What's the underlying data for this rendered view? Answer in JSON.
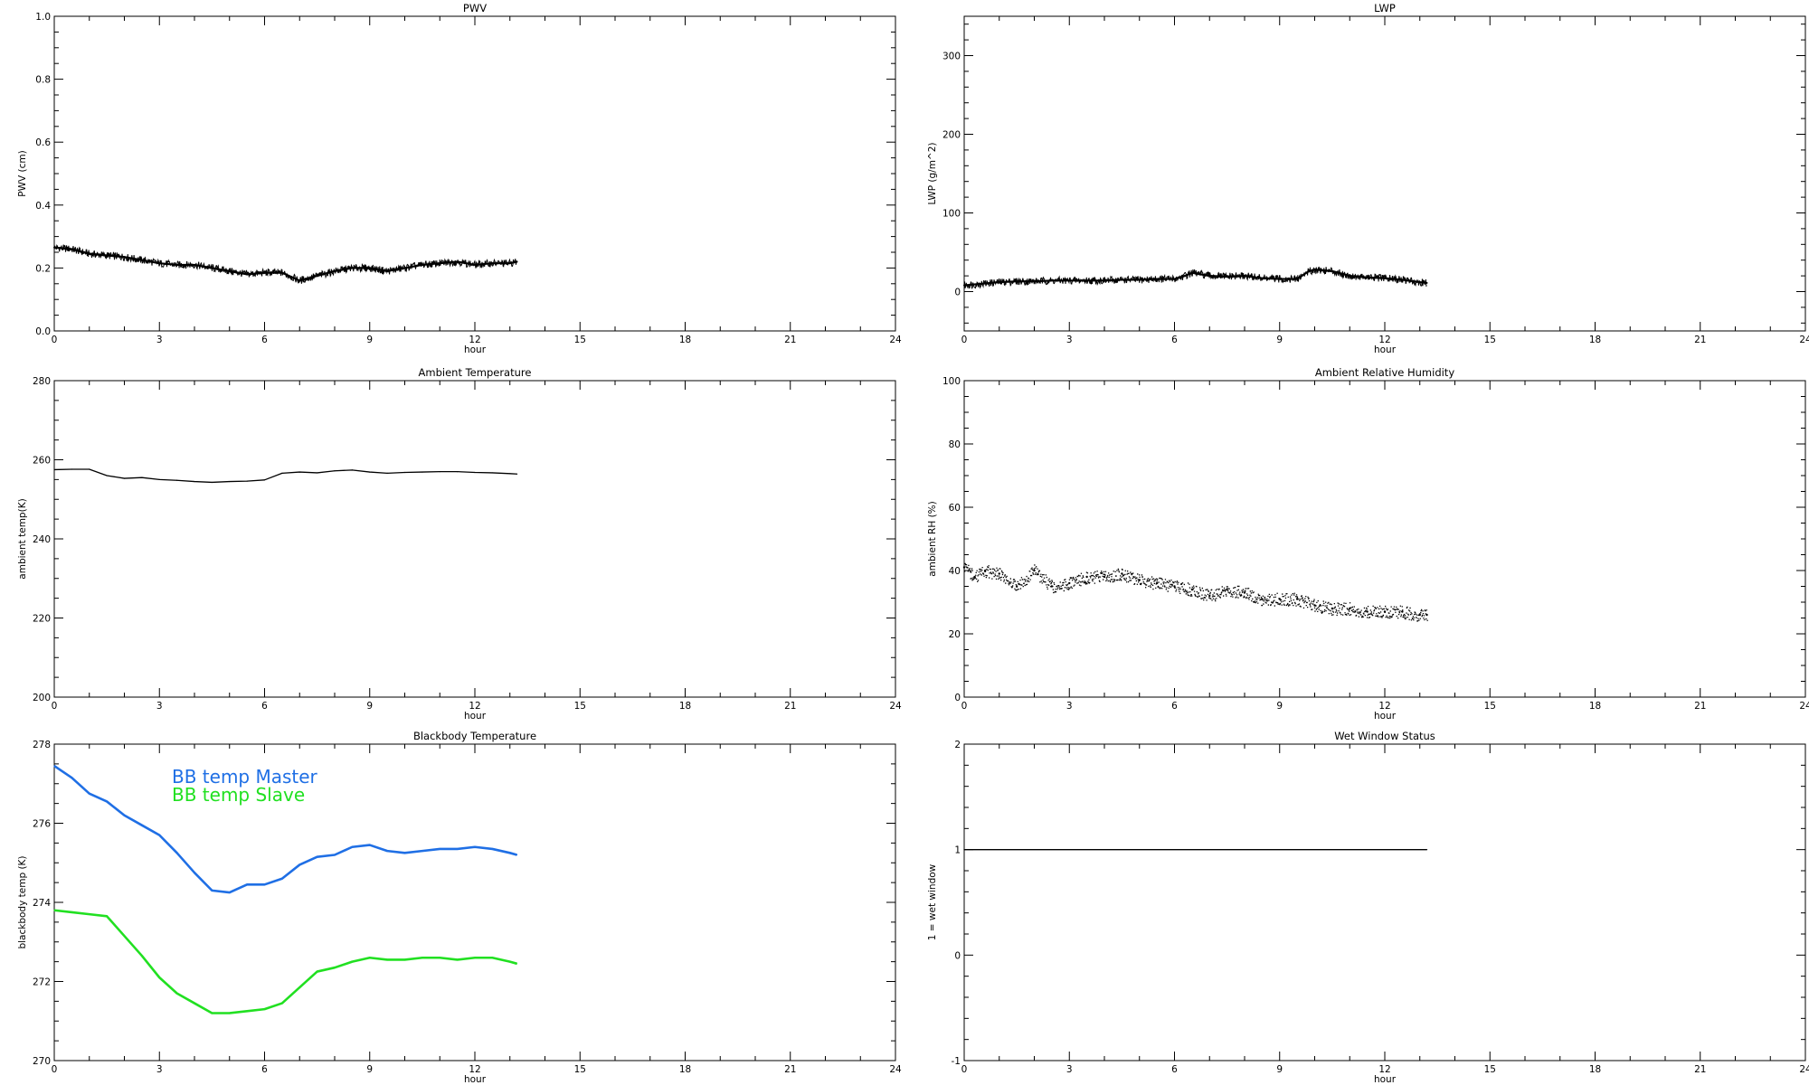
{
  "chart_data": [
    {
      "type": "line",
      "title": "PWV",
      "xlabel": "hour",
      "ylabel": "PWV (cm)",
      "xlim": [
        0,
        24
      ],
      "ylim": [
        0.0,
        1.0
      ],
      "xticks": [
        "0",
        "3",
        "6",
        "9",
        "12",
        "15",
        "18",
        "21",
        "24"
      ],
      "yticks": [
        "0.0",
        "0.2",
        "0.4",
        "0.6",
        "0.8",
        "1.0"
      ],
      "marker_style": "dense-noisy",
      "series": [
        {
          "color": "#000000",
          "x": [
            0,
            0.5,
            1,
            1.5,
            2,
            2.5,
            3,
            3.5,
            4,
            4.5,
            5,
            5.5,
            6,
            6.5,
            7,
            7.5,
            8,
            8.5,
            9,
            9.5,
            10,
            10.5,
            11,
            11.5,
            12,
            12.5,
            13,
            13.2
          ],
          "y": [
            0.265,
            0.26,
            0.245,
            0.24,
            0.235,
            0.225,
            0.215,
            0.21,
            0.21,
            0.2,
            0.19,
            0.18,
            0.185,
            0.185,
            0.16,
            0.175,
            0.19,
            0.2,
            0.2,
            0.19,
            0.2,
            0.21,
            0.215,
            0.22,
            0.21,
            0.215,
            0.215,
            0.22
          ]
        }
      ]
    },
    {
      "type": "line",
      "title": "LWP",
      "xlabel": "hour",
      "ylabel": "LWP (g/m^2)",
      "xlim": [
        0,
        24
      ],
      "ylim": [
        -50,
        350
      ],
      "xticks": [
        "0",
        "3",
        "6",
        "9",
        "12",
        "15",
        "18",
        "21",
        "24"
      ],
      "yticks": [
        "0",
        "100",
        "200",
        "300"
      ],
      "marker_style": "dense-noisy",
      "series": [
        {
          "color": "#000000",
          "x": [
            0,
            0.5,
            1,
            1.5,
            2,
            2.5,
            3,
            3.5,
            4,
            4.5,
            5,
            5.5,
            6,
            6.3,
            6.5,
            7,
            7.5,
            8,
            8.5,
            9,
            9.5,
            9.8,
            10,
            10.5,
            11,
            11.5,
            12,
            12.5,
            13,
            13.2
          ],
          "y": [
            8,
            10,
            12,
            13,
            13,
            14,
            14,
            14,
            14,
            15,
            15,
            16,
            16,
            20,
            24,
            20,
            19,
            20,
            17,
            16,
            16,
            25,
            28,
            26,
            20,
            18,
            17,
            15,
            12,
            11
          ]
        }
      ]
    },
    {
      "type": "line",
      "title": "Ambient Temperature",
      "xlabel": "hour",
      "ylabel": "ambient temp(K)",
      "xlim": [
        0,
        24
      ],
      "ylim": [
        200,
        280
      ],
      "xticks": [
        "0",
        "3",
        "6",
        "9",
        "12",
        "15",
        "18",
        "21",
        "24"
      ],
      "yticks": [
        "200",
        "220",
        "240",
        "260",
        "280"
      ],
      "marker_style": "line",
      "series": [
        {
          "color": "#000000",
          "x": [
            0,
            0.5,
            1,
            1.5,
            2,
            2.5,
            3,
            3.5,
            4,
            4.5,
            5,
            5.5,
            6,
            6.5,
            7,
            7.5,
            8,
            8.5,
            9,
            9.5,
            10,
            10.5,
            11,
            11.5,
            12,
            12.5,
            13,
            13.2
          ],
          "y": [
            257.5,
            257.6,
            257.6,
            256.0,
            255.3,
            255.5,
            255.0,
            254.8,
            254.5,
            254.3,
            254.5,
            254.6,
            254.9,
            256.6,
            256.9,
            256.7,
            257.2,
            257.4,
            256.9,
            256.6,
            256.8,
            256.9,
            257.0,
            257.0,
            256.8,
            256.7,
            256.5,
            256.4
          ]
        }
      ]
    },
    {
      "type": "scatter",
      "title": "Ambient Relative Humidity",
      "xlabel": "hour",
      "ylabel": "ambient RH (%)",
      "xlim": [
        0,
        24
      ],
      "ylim": [
        0,
        100
      ],
      "xticks": [
        "0",
        "3",
        "6",
        "9",
        "12",
        "15",
        "18",
        "21",
        "24"
      ],
      "yticks": [
        "0",
        "20",
        "40",
        "60",
        "80",
        "100"
      ],
      "marker_style": "dots",
      "series": [
        {
          "color": "#000000",
          "x": [
            0,
            0.3,
            0.6,
            1,
            1.5,
            2,
            2.5,
            3,
            3.5,
            4,
            4.5,
            5,
            5.5,
            6,
            6.5,
            7,
            7.5,
            8,
            8.5,
            9,
            9.5,
            10,
            10.5,
            11,
            11.5,
            12,
            12.5,
            13,
            13.2
          ],
          "y": [
            41,
            38,
            40,
            39,
            35,
            40,
            35,
            36,
            38,
            38,
            39,
            37,
            36,
            35,
            34,
            32,
            34,
            33,
            31,
            31,
            31,
            29,
            28,
            28,
            27,
            27,
            27,
            26,
            26
          ]
        }
      ]
    },
    {
      "type": "line",
      "title": "Blackbody Temperature",
      "xlabel": "hour",
      "ylabel": "blackbody temp (K)",
      "xlim": [
        0,
        24
      ],
      "ylim": [
        270,
        278
      ],
      "xticks": [
        "0",
        "3",
        "6",
        "9",
        "12",
        "15",
        "18",
        "21",
        "24"
      ],
      "yticks": [
        "270",
        "272",
        "274",
        "276",
        "278"
      ],
      "marker_style": "line",
      "series": [
        {
          "name": "BB temp Master",
          "color": "#1f6fe5",
          "x": [
            0,
            0.5,
            1,
            1.5,
            2,
            2.5,
            3,
            3.5,
            4,
            4.5,
            5,
            5.5,
            6,
            6.5,
            7,
            7.5,
            8,
            8.5,
            9,
            9.5,
            10,
            10.5,
            11,
            11.5,
            12,
            12.5,
            13,
            13.2
          ],
          "y": [
            277.45,
            277.15,
            276.75,
            276.55,
            276.2,
            275.95,
            275.7,
            275.25,
            274.75,
            274.3,
            274.25,
            274.45,
            274.45,
            274.6,
            274.95,
            275.15,
            275.2,
            275.4,
            275.45,
            275.3,
            275.25,
            275.3,
            275.35,
            275.35,
            275.4,
            275.35,
            275.25,
            275.2
          ]
        },
        {
          "name": "BB temp Slave",
          "color": "#21e021",
          "x": [
            0,
            0.5,
            1,
            1.5,
            2,
            2.5,
            3,
            3.5,
            4,
            4.5,
            5,
            5.5,
            6,
            6.5,
            7,
            7.5,
            8,
            8.5,
            9,
            9.5,
            10,
            10.5,
            11,
            11.5,
            12,
            12.5,
            13,
            13.2
          ],
          "y": [
            273.8,
            273.75,
            273.7,
            273.65,
            273.15,
            272.65,
            272.1,
            271.7,
            271.45,
            271.2,
            271.2,
            271.25,
            271.3,
            271.45,
            271.85,
            272.25,
            272.35,
            272.5,
            272.6,
            272.55,
            272.55,
            272.6,
            272.6,
            272.55,
            272.6,
            272.6,
            272.5,
            272.45
          ]
        }
      ]
    },
    {
      "type": "line",
      "title": "Wet Window Status",
      "xlabel": "hour",
      "ylabel": "1 = wet window",
      "xlim": [
        0,
        24
      ],
      "ylim": [
        -1,
        2
      ],
      "xticks": [
        "0",
        "3",
        "6",
        "9",
        "12",
        "15",
        "18",
        "21",
        "24"
      ],
      "yticks": [
        "-1",
        "0",
        "1",
        "2"
      ],
      "marker_style": "line",
      "series": [
        {
          "color": "#000000",
          "x": [
            0,
            13.2
          ],
          "y": [
            1,
            1
          ]
        }
      ]
    }
  ]
}
